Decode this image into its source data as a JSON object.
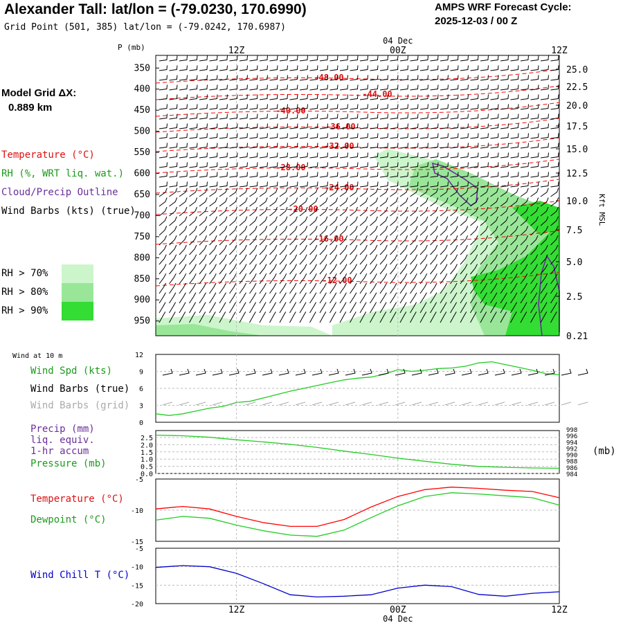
{
  "header": {
    "title": "Alexander Tall:  lat/lon = (-79.0230, 170.6990)",
    "subtitle": "Grid Point (501, 385) lat/lon = (-79.0242, 170.6987)",
    "cycle_label": "AMPS WRF Forecast Cycle:",
    "cycle_value": "2025-12-03 / 00  Z"
  },
  "side": {
    "model_grid_label": "Model Grid ΔX:",
    "model_grid_value": "0.889 km",
    "legend_temperature": "Temperature (°C)",
    "legend_rh": "RH (%, WRT liq. wat.)",
    "legend_cloud": "Cloud/Precip Outline",
    "legend_wind": "Wind Barbs (kts) (true)",
    "rh_70": "RH > 70%",
    "rh_80": "RH > 80%",
    "rh_90": "RH > 90%",
    "kft_label": "Kft MSL",
    "p_label": "P (mb)"
  },
  "colors": {
    "temperature": "#ff0000",
    "temperature_label": "#dd1111",
    "rh_text": "#1a9b1a",
    "cloud": "#6a2e9a",
    "rh70": "#ccf5cc",
    "rh80": "#99e699",
    "rh90": "#33dd33",
    "wind_chill": "#0000cc",
    "dewpoint": "#22cc22",
    "grid_barb": "#aaaaaa"
  },
  "time_axis": {
    "top_labels": [
      "12Z",
      "00Z",
      "12Z"
    ],
    "date_label": "04 Dec",
    "bottom_labels": [
      "12Z",
      "00Z",
      "12Z"
    ],
    "forecast_hours_span": [
      6,
      36
    ]
  },
  "panel_labels": {
    "wind_10m": "Wind at 10 m",
    "wind_spd": "Wind Spd (kts)",
    "wind_barbs_true": "Wind Barbs (true)",
    "wind_barbs_grid": "Wind Barbs (grid)",
    "precip_1": "Precip (mm)",
    "precip_2": "liq. equiv.",
    "precip_3": "1-hr accum",
    "pressure": "Pressure (mb)",
    "pressure_unit": "(mb)",
    "temperature": "Temperature (°C)",
    "dewpoint": "Dewpoint (°C)",
    "wind_chill": "Wind Chill T (°C)"
  },
  "chart_data": [
    {
      "type": "heatmap",
      "name": "cross-section",
      "y_pressure_ticks": [
        "350",
        "400",
        "450",
        "500",
        "550",
        "600",
        "650",
        "700",
        "750",
        "800",
        "850",
        "900",
        "950"
      ],
      "y_height_ticks": [
        "25.0",
        "22.5",
        "20.0",
        "17.5",
        "15.0",
        "12.5",
        "10.0",
        "7.5",
        "5.0",
        "2.5",
        "0.21"
      ],
      "pressure_values": [
        350,
        400,
        450,
        500,
        550,
        600,
        650,
        700,
        750,
        800,
        850,
        900,
        950
      ],
      "isotherm_labels": [
        "-48.00",
        "-44.00",
        "-40.00",
        "-36.00",
        "-32.00",
        "-28.00",
        "-24.00",
        "-20.00",
        "-16.00",
        "-12.00"
      ]
    },
    {
      "type": "line",
      "name": "wind-speed",
      "y_ticks": [
        "12",
        "9",
        "6",
        "3",
        "0"
      ],
      "ylim": [
        0,
        12
      ],
      "x": [
        6,
        7,
        8,
        9,
        10,
        11,
        12,
        13,
        14,
        15,
        16,
        17,
        18,
        19,
        20,
        21,
        22,
        23,
        24,
        25,
        26,
        27,
        28,
        29,
        30,
        31,
        32,
        33,
        34,
        35,
        36
      ],
      "values": [
        1.5,
        1.2,
        1.5,
        2.0,
        2.5,
        2.8,
        3.5,
        3.7,
        4.3,
        4.9,
        5.5,
        6.0,
        6.5,
        7.0,
        7.5,
        7.8,
        8.0,
        8.5,
        9.3,
        9.0,
        9.2,
        9.5,
        9.6,
        9.9,
        10.5,
        10.7,
        10.2,
        9.7,
        9.2,
        8.6,
        8.4
      ]
    },
    {
      "type": "line",
      "name": "precip-pressure",
      "y_left_ticks": [
        "2.5",
        "2.0",
        "1.5",
        "1.0",
        "0.5",
        "0.0"
      ],
      "y_right_ticks": [
        "998",
        "996",
        "994",
        "992",
        "990",
        "988",
        "986",
        "984"
      ],
      "ylim": [
        984,
        998
      ],
      "x": [
        6,
        8,
        10,
        12,
        14,
        16,
        18,
        20,
        22,
        24,
        26,
        28,
        30,
        32,
        34,
        36
      ],
      "values": [
        996.5,
        996.3,
        995.8,
        995.0,
        994.3,
        993.5,
        992.5,
        991.3,
        990.2,
        989.0,
        988.0,
        987.0,
        986.3,
        986.0,
        985.8,
        985.7
      ]
    },
    {
      "type": "line",
      "name": "temperature-dewpoint",
      "y_ticks": [
        "-5",
        "-10",
        "-15"
      ],
      "ylim": [
        -15,
        -5
      ],
      "x": [
        6,
        8,
        10,
        12,
        14,
        16,
        18,
        20,
        22,
        24,
        26,
        28,
        30,
        32,
        34,
        36
      ],
      "series": [
        {
          "name": "Temperature",
          "values": [
            -9.8,
            -9.4,
            -9.8,
            -11.0,
            -12.0,
            -12.6,
            -12.6,
            -11.5,
            -9.5,
            -7.8,
            -6.7,
            -6.3,
            -6.5,
            -6.8,
            -7.0,
            -8.0
          ]
        },
        {
          "name": "Dewpoint",
          "values": [
            -11.6,
            -11.0,
            -11.3,
            -12.4,
            -13.3,
            -14.0,
            -14.2,
            -13.2,
            -11.2,
            -9.3,
            -7.8,
            -7.2,
            -7.4,
            -7.7,
            -8.0,
            -9.2
          ]
        }
      ]
    },
    {
      "type": "line",
      "name": "wind-chill",
      "y_ticks": [
        "-5",
        "-10",
        "-15",
        "-20"
      ],
      "ylim": [
        -20,
        -5
      ],
      "x": [
        6,
        8,
        10,
        12,
        14,
        16,
        18,
        20,
        22,
        24,
        26,
        28,
        30,
        32,
        34,
        36
      ],
      "values": [
        -10.2,
        -9.7,
        -10.0,
        -11.8,
        -14.6,
        -17.6,
        -18.2,
        -18.0,
        -17.6,
        -15.8,
        -15.0,
        -15.4,
        -17.5,
        -18.0,
        -17.2,
        -16.8
      ]
    }
  ]
}
